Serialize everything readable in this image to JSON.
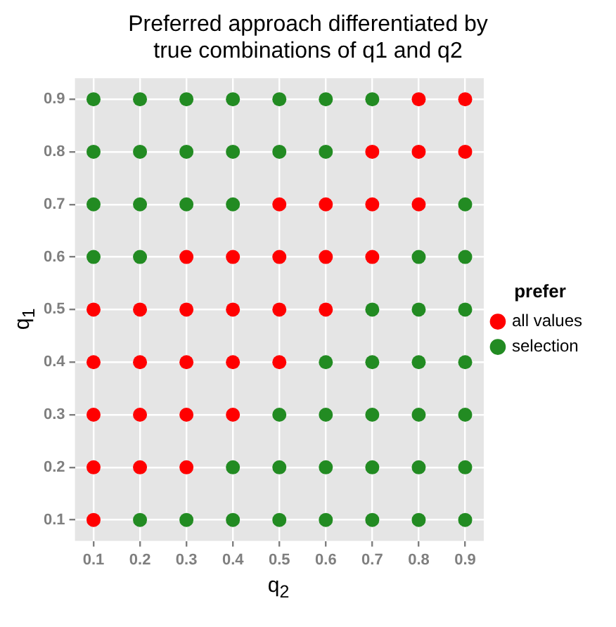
{
  "chart_data": {
    "type": "scatter",
    "title": "Preferred approach differentiated by\ntrue combinations of q1 and q2",
    "xlabel": "q$_{2}$",
    "ylabel": "q$_{1}$",
    "legend_title": "prefer",
    "legend": "right",
    "grid": true,
    "marker": "circle",
    "xlim": [
      0.06,
      0.94
    ],
    "ylim": [
      0.06,
      0.94
    ],
    "xticks": [
      0.1,
      0.2,
      0.3,
      0.4,
      0.5,
      0.6,
      0.7,
      0.8,
      0.9
    ],
    "yticks": [
      0.1,
      0.2,
      0.3,
      0.4,
      0.5,
      0.6,
      0.7,
      0.8,
      0.9
    ],
    "series": [
      {
        "name": "all values",
        "color": "#ff0000",
        "x": [
          0.8,
          0.9,
          0.7,
          0.8,
          0.9,
          0.5,
          0.6,
          0.7,
          0.8,
          0.3,
          0.4,
          0.5,
          0.6,
          0.7,
          0.1,
          0.2,
          0.3,
          0.4,
          0.5,
          0.6,
          0.1,
          0.2,
          0.3,
          0.4,
          0.5,
          0.1,
          0.2,
          0.3,
          0.4,
          0.1,
          0.2,
          0.3,
          0.1
        ],
        "values": [
          0.9,
          0.9,
          0.8,
          0.8,
          0.8,
          0.7,
          0.7,
          0.7,
          0.7,
          0.6,
          0.6,
          0.6,
          0.6,
          0.6,
          0.5,
          0.5,
          0.5,
          0.5,
          0.5,
          0.5,
          0.4,
          0.4,
          0.4,
          0.4,
          0.4,
          0.3,
          0.3,
          0.3,
          0.3,
          0.2,
          0.2,
          0.2,
          0.1
        ]
      },
      {
        "name": "selection",
        "color": "#228b22",
        "x": [
          0.1,
          0.2,
          0.3,
          0.4,
          0.5,
          0.6,
          0.7,
          0.1,
          0.2,
          0.3,
          0.4,
          0.5,
          0.6,
          0.1,
          0.2,
          0.3,
          0.4,
          0.9,
          0.1,
          0.2,
          0.8,
          0.9,
          0.7,
          0.8,
          0.9,
          0.6,
          0.7,
          0.8,
          0.9,
          0.5,
          0.6,
          0.7,
          0.8,
          0.9,
          0.4,
          0.5,
          0.6,
          0.7,
          0.8,
          0.9,
          0.2,
          0.3,
          0.4,
          0.5,
          0.6,
          0.7,
          0.8,
          0.9
        ],
        "values": [
          0.9,
          0.9,
          0.9,
          0.9,
          0.9,
          0.9,
          0.9,
          0.8,
          0.8,
          0.8,
          0.8,
          0.8,
          0.8,
          0.7,
          0.7,
          0.7,
          0.7,
          0.7,
          0.6,
          0.6,
          0.6,
          0.6,
          0.5,
          0.5,
          0.5,
          0.4,
          0.4,
          0.4,
          0.4,
          0.3,
          0.3,
          0.3,
          0.3,
          0.3,
          0.2,
          0.2,
          0.2,
          0.2,
          0.2,
          0.2,
          0.1,
          0.1,
          0.1,
          0.1,
          0.1,
          0.1,
          0.1,
          0.1
        ]
      }
    ]
  }
}
